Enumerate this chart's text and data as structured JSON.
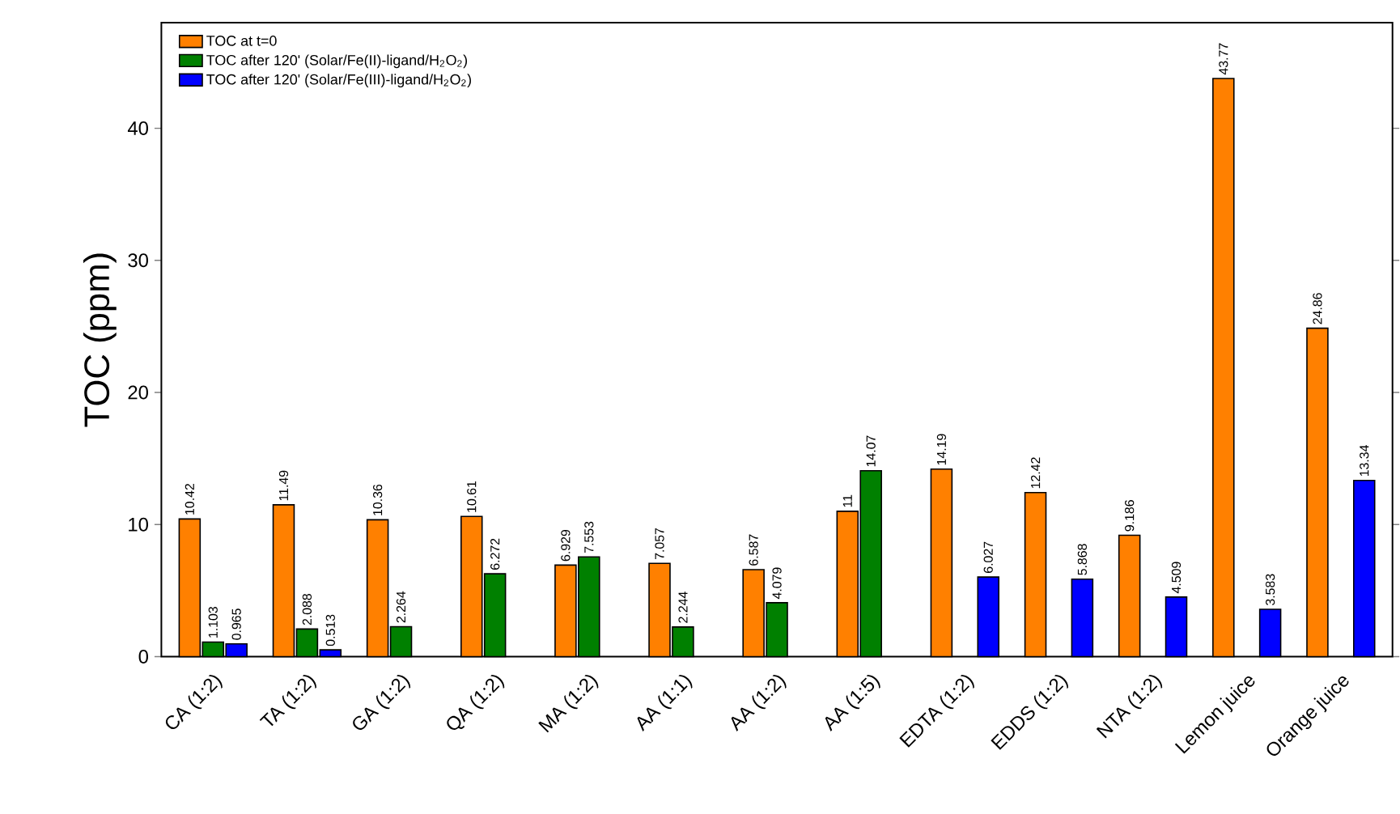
{
  "chart_data": {
    "type": "bar",
    "ylabel": "TOC (ppm)",
    "categories": [
      "CA (1:2)",
      "TA (1:2)",
      "GA (1:2)",
      "QA (1:2)",
      "MA (1:2)",
      "AA (1:1)",
      "AA (1:2)",
      "AA (1:5)",
      "EDTA (1:2)",
      "EDDS (1:2)",
      "NTA (1:2)",
      "Lemon juice",
      "Orange juice"
    ],
    "series": [
      {
        "name": "TOC at t=0",
        "color": "#ff8000",
        "values": [
          10.42,
          11.49,
          10.36,
          10.61,
          6.929,
          7.057,
          6.587,
          11,
          14.19,
          12.42,
          9.186,
          43.77,
          24.86
        ],
        "value_labels": [
          "10.42",
          "11.49",
          "10.36",
          "10.61",
          "6.929",
          "7.057",
          "6.587",
          "11",
          "14.19",
          "12.42",
          "9.186",
          "43.77",
          "24.86"
        ]
      },
      {
        "name": "TOC after 120' (Solar/Fe(II)-ligand/H$_{2}$O$_{2}$)",
        "color": "#008000",
        "values": [
          1.103,
          2.088,
          2.264,
          6.272,
          7.553,
          2.244,
          4.079,
          14.07,
          null,
          null,
          null,
          null,
          null
        ],
        "value_labels": [
          "1.103",
          "2.088",
          "2.264",
          "6.272",
          "7.553",
          "2.244",
          "4.079",
          "14.07",
          null,
          null,
          null,
          null,
          null
        ]
      },
      {
        "name": "TOC after 120' (Solar/Fe(III)-ligand/H$_{2}$O$_{2}$)",
        "color": "#0000ff",
        "values": [
          0.965,
          0.513,
          null,
          null,
          null,
          null,
          null,
          null,
          6.027,
          5.868,
          4.509,
          3.583,
          13.34
        ],
        "value_labels": [
          "0.965",
          "0.513",
          null,
          null,
          null,
          null,
          null,
          null,
          "6.027",
          "5.868",
          "4.509",
          "3.583",
          "13.34"
        ]
      }
    ],
    "ylim": [
      0,
      48
    ],
    "yticks": [
      0,
      10,
      20,
      30,
      40
    ],
    "grid": false,
    "legend": "top left"
  }
}
